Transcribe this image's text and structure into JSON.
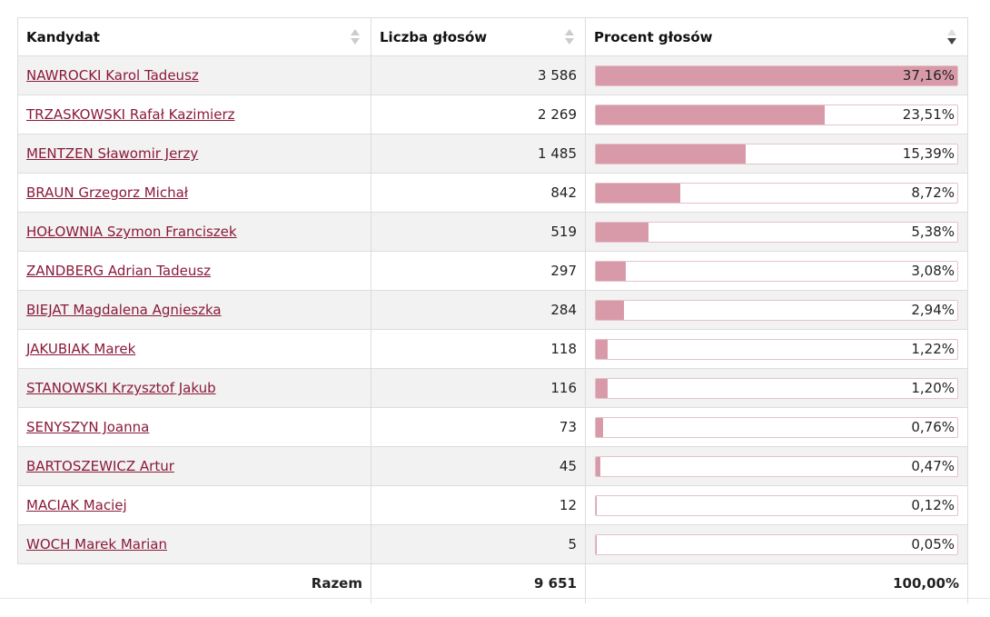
{
  "table": {
    "headers": {
      "candidate": "Kandydat",
      "votes": "Liczba głosów",
      "percent": "Procent głosów"
    },
    "sort": {
      "column": "percent",
      "direction": "descending"
    },
    "rows": [
      {
        "name": "NAWROCKI Karol Tadeusz",
        "votes": "3 586",
        "percent": "37,16%",
        "share": 37.16
      },
      {
        "name": "TRZASKOWSKI Rafał Kazimierz",
        "votes": "2 269",
        "percent": "23,51%",
        "share": 23.51
      },
      {
        "name": "MENTZEN Sławomir Jerzy",
        "votes": "1 485",
        "percent": "15,39%",
        "share": 15.39
      },
      {
        "name": "BRAUN Grzegorz Michał",
        "votes": "842",
        "percent": "8,72%",
        "share": 8.72
      },
      {
        "name": "HOŁOWNIA Szymon Franciszek",
        "votes": "519",
        "percent": "5,38%",
        "share": 5.38
      },
      {
        "name": "ZANDBERG Adrian Tadeusz",
        "votes": "297",
        "percent": "3,08%",
        "share": 3.08
      },
      {
        "name": "BIEJAT Magdalena Agnieszka",
        "votes": "284",
        "percent": "2,94%",
        "share": 2.94
      },
      {
        "name": "JAKUBIAK Marek",
        "votes": "118",
        "percent": "1,22%",
        "share": 1.22
      },
      {
        "name": "STANOWSKI Krzysztof Jakub",
        "votes": "116",
        "percent": "1,20%",
        "share": 1.2
      },
      {
        "name": "SENYSZYN Joanna",
        "votes": "73",
        "percent": "0,76%",
        "share": 0.76
      },
      {
        "name": "BARTOSZEWICZ Artur",
        "votes": "45",
        "percent": "0,47%",
        "share": 0.47
      },
      {
        "name": "MACIAK Maciej",
        "votes": "12",
        "percent": "0,12%",
        "share": 0.12
      },
      {
        "name": "WOCH Marek Marian",
        "votes": "5",
        "percent": "0,05%",
        "share": 0.05
      }
    ],
    "totals": {
      "label": "Razem",
      "votes": "9 651",
      "percent": "100,00%"
    }
  },
  "colors": {
    "link": "#8b1a3a",
    "bar_fill": "#d89aa9",
    "bar_border": "#e3c2cb",
    "row_alt": "#f2f2f2"
  },
  "icons": {
    "sort_inactive": "sort-arrows-icon",
    "sort_active": "sort-desc-icon"
  }
}
